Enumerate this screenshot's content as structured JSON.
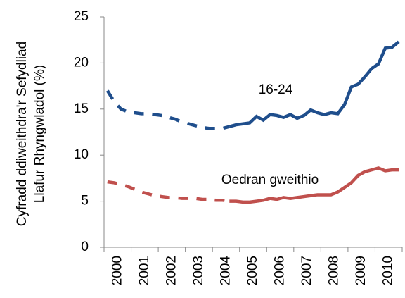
{
  "chart_data": {
    "type": "line",
    "ylabel": [
      "Cyfradd ddiweithdra'r Sefydliad",
      "Llafur Rhyngwladol (%)"
    ],
    "categories": [
      "2000",
      null,
      null,
      null,
      "2001",
      null,
      null,
      null,
      "2002",
      null,
      null,
      null,
      "2003",
      null,
      null,
      null,
      "2004",
      null,
      null,
      null,
      "2005",
      null,
      null,
      null,
      "2006",
      null,
      null,
      null,
      "2007",
      null,
      null,
      null,
      "2008",
      null,
      null,
      null,
      "2009",
      null,
      null,
      null,
      "2010",
      null,
      null,
      null
    ],
    "ylim": [
      0,
      25
    ],
    "yticks": [
      0,
      5,
      10,
      15,
      20,
      25
    ],
    "grid": false,
    "series": [
      {
        "name": "16-24",
        "color": "#1f4e8c",
        "dash_end": 18,
        "values": [
          17.0,
          15.8,
          15.0,
          14.7,
          14.6,
          14.5,
          14.5,
          14.4,
          14.3,
          14.1,
          13.9,
          13.6,
          13.4,
          13.2,
          13.0,
          12.9,
          12.9,
          12.9,
          13.1,
          13.3,
          13.4,
          13.5,
          14.2,
          13.8,
          14.4,
          14.3,
          14.1,
          14.4,
          14.0,
          14.3,
          14.9,
          14.6,
          14.4,
          14.6,
          14.5,
          15.5,
          17.4,
          17.7,
          18.5,
          19.4,
          19.9,
          21.6,
          21.7,
          22.3
        ]
      },
      {
        "name": "Oedran gweithio",
        "color": "#c0504d",
        "dash_end": 18,
        "values": [
          7.1,
          7.0,
          6.8,
          6.6,
          6.3,
          6.0,
          5.8,
          5.6,
          5.5,
          5.4,
          5.4,
          5.3,
          5.3,
          5.3,
          5.2,
          5.2,
          5.1,
          5.1,
          5.0,
          5.0,
          4.9,
          4.9,
          5.0,
          5.1,
          5.3,
          5.2,
          5.4,
          5.3,
          5.4,
          5.5,
          5.6,
          5.7,
          5.7,
          5.7,
          6.0,
          6.5,
          7.0,
          7.8,
          8.2,
          8.4,
          8.6,
          8.3,
          8.4,
          8.4
        ]
      }
    ]
  }
}
